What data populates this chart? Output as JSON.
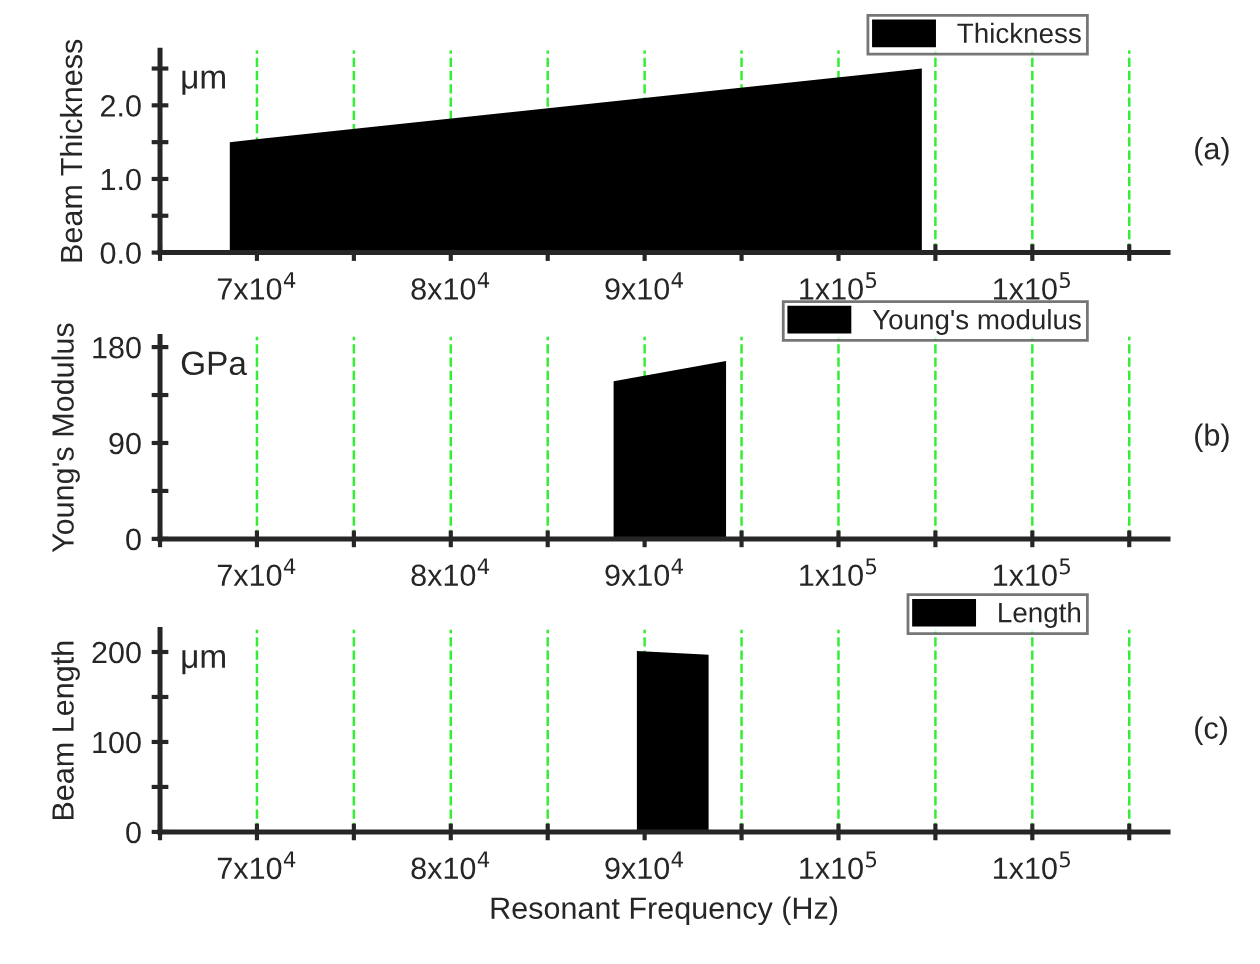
{
  "chart_data": [
    {
      "type": "area",
      "ylabel": "Beam Thickness",
      "annotations": [
        "μm",
        "(a)"
      ],
      "x": [
        68600,
        104300
      ],
      "series": [
        {
          "name": "Thickness",
          "color": "#000000",
          "values": [
            1.5,
            2.5
          ]
        }
      ],
      "xlim": [
        65000,
        117000
      ],
      "xticks": [
        {
          "value": 65000,
          "label": null
        },
        {
          "value": 70000,
          "label": "7x10$^{4}$"
        },
        {
          "value": 75000,
          "label": null
        },
        {
          "value": 80000,
          "label": "8x10$^{4}$"
        },
        {
          "value": 85000,
          "label": null
        },
        {
          "value": 90000,
          "label": "9x10$^{4}$"
        },
        {
          "value": 95000,
          "label": null
        },
        {
          "value": 100000,
          "label": "1x10$^{5}$"
        },
        {
          "value": 105000,
          "label": null
        },
        {
          "value": 110000,
          "label": "1x10$^{5}$"
        },
        {
          "value": 115000,
          "label": null
        }
      ],
      "ylim": [
        0,
        2.75
      ],
      "yticks": [
        {
          "value": 0,
          "label": "0.0"
        },
        {
          "value": 0.5,
          "label": null
        },
        {
          "value": 1,
          "label": "1.0"
        },
        {
          "value": 1.5,
          "label": null
        },
        {
          "value": 2,
          "label": "2.0"
        },
        {
          "value": 2.5,
          "label": null
        }
      ],
      "grid": "x",
      "legend": "top right"
    },
    {
      "type": "area",
      "ylabel": "Young's Modulus",
      "annotations": [
        "GPa",
        "(b)"
      ],
      "x": [
        88400,
        94200
      ],
      "series": [
        {
          "name": "Young's modulus",
          "color": "#000000",
          "values": [
            148,
            167
          ]
        }
      ],
      "xlim": [
        65000,
        117000
      ],
      "xticks": [
        {
          "value": 65000,
          "label": null
        },
        {
          "value": 70000,
          "label": "7x10$^{4}$"
        },
        {
          "value": 75000,
          "label": null
        },
        {
          "value": 80000,
          "label": "8x10$^{4}$"
        },
        {
          "value": 85000,
          "label": null
        },
        {
          "value": 90000,
          "label": "9x10$^{4}$"
        },
        {
          "value": 95000,
          "label": null
        },
        {
          "value": 100000,
          "label": "1x10$^{5}$"
        },
        {
          "value": 105000,
          "label": null
        },
        {
          "value": 110000,
          "label": "1x10$^{5}$"
        },
        {
          "value": 115000,
          "label": null
        }
      ],
      "ylim": [
        0,
        190
      ],
      "yticks": [
        0,
        {
          "value": 45,
          "label": null
        },
        90,
        {
          "value": 135,
          "label": null
        },
        180
      ],
      "grid": "x",
      "legend": "top right"
    },
    {
      "type": "area",
      "ylabel": "Beam Length",
      "xlabel": "Resonant Frequency (Hz)",
      "annotations": [
        "μm",
        "(c)"
      ],
      "x": [
        89600,
        93300
      ],
      "series": [
        {
          "name": "Length",
          "color": "#000000",
          "values": [
            201,
            197
          ]
        }
      ],
      "xlim": [
        65000,
        117000
      ],
      "xticks": [
        {
          "value": 65000,
          "label": null
        },
        {
          "value": 70000,
          "label": "7x10$^{4}$"
        },
        {
          "value": 75000,
          "label": null
        },
        {
          "value": 80000,
          "label": "8x10$^{4}$"
        },
        {
          "value": 85000,
          "label": null
        },
        {
          "value": 90000,
          "label": "9x10$^{4}$"
        },
        {
          "value": 95000,
          "label": null
        },
        {
          "value": 100000,
          "label": "1x10$^{5}$"
        },
        {
          "value": 105000,
          "label": null
        },
        {
          "value": 110000,
          "label": "1x10$^{5}$"
        },
        {
          "value": 115000,
          "label": null
        }
      ],
      "ylim": [
        0,
        225
      ],
      "yticks": [
        0,
        {
          "value": 50,
          "label": null
        },
        100,
        {
          "value": 150,
          "label": null
        },
        200
      ],
      "grid": "x",
      "legend": "top right"
    }
  ]
}
